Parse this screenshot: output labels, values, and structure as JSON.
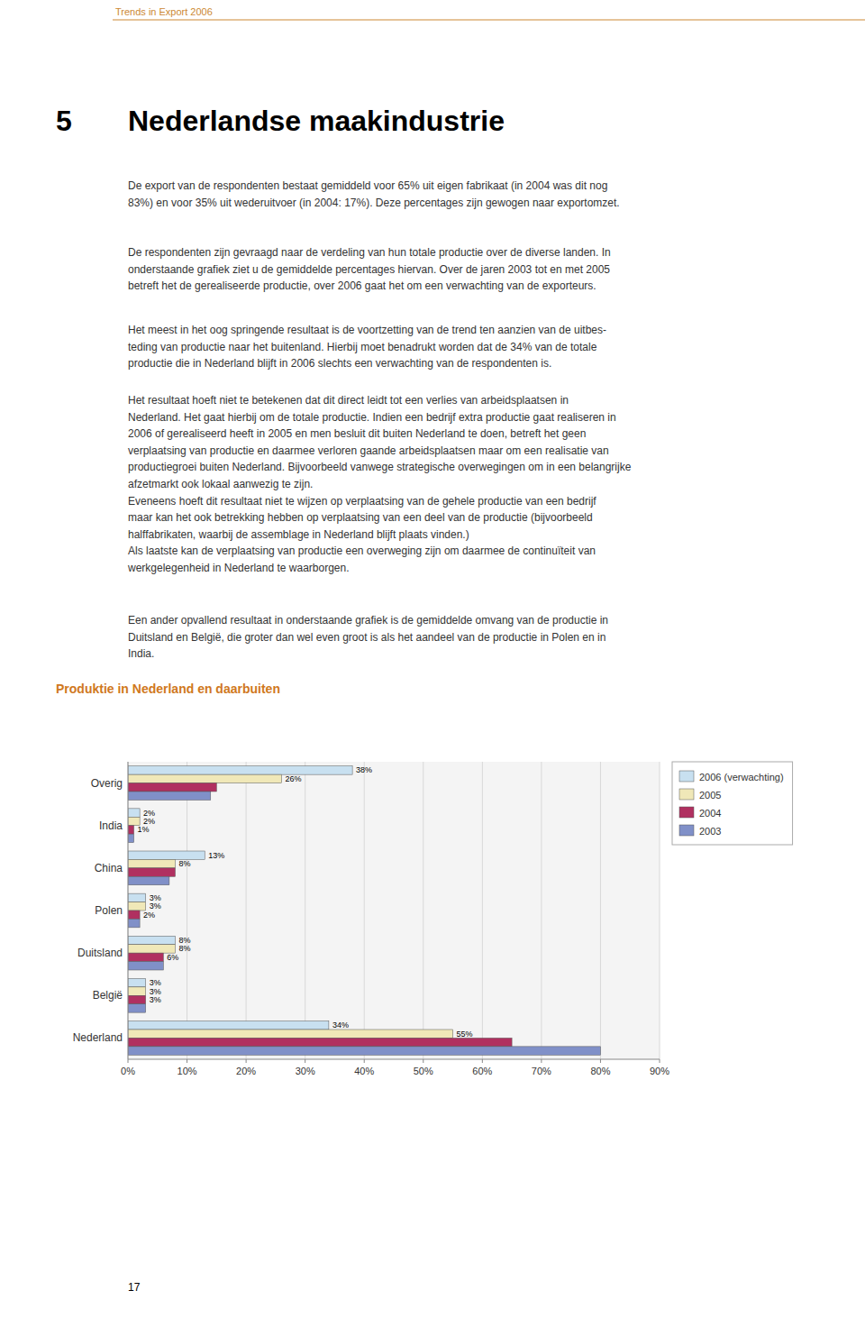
{
  "page": {
    "page_header": "Trends in Export 2006",
    "section_number": "5",
    "section_title": "Nederlandse maakindustrie",
    "body_text": [
      "De export van de respondenten bestaat gemiddeld voor 65% uit eigen fabrikaat (in 2004 was dit nog\n83%) en voor 35% uit wederuitvoer (in 2004: 17%). Deze percentages zijn gewogen naar exportomzet.",
      "De respondenten zijn gevraagd naar de verdeling van hun totale productie over de diverse landen. In\nonderstaande grafiek ziet u de gemiddelde percentages hiervan. Over de jaren 2003 tot en met 2005\nbetreft het de gerealiseerde productie, over 2006 gaat het om een verwachting van de exporteurs.",
      "Het meest in het oog springende resultaat is de voortzetting van de trend ten aanzien van de uitbes-\nteding van productie naar het buitenland. Hierbij moet benadrukt worden dat de 34% van de totale\nproductie die in Nederland blijft in 2006 slechts een verwachting van de respondenten is.",
      "Het resultaat hoeft niet te betekenen dat dit direct leidt tot een verlies van arbeidsplaatsen in\nNederland. Het gaat hierbij om de totale productie. Indien een bedrijf extra productie gaat realiseren in\n2006 of gerealiseerd heeft in 2005 en men besluit dit buiten Nederland te doen, betreft het geen\nverplaatsing van productie en daarmee verloren gaande arbeidsplaatsen maar om een realisatie van\nproductiegroei buiten Nederland. Bijvoorbeeld vanwege strategische overwegingen om in een belangrijke\nafzetmarkt ook lokaal aanwezig te zijn.\nEveneens hoeft dit resultaat niet te wijzen op verplaatsing van de gehele productie van een bedrijf\nmaar kan het ook betrekking hebben op verplaatsing van een deel van de productie (bijvoorbeeld\nhalffabrikaten, waarbij de assemblage in Nederland blijft plaats vinden.)\nAls laatste kan de verplaatsing van productie een overweging zijn om daarmee de continuïteit van\nwerkgelegenheid in Nederland te waarborgen.",
      "Een ander opvallend resultaat in onderstaande grafiek is de gemiddelde omvang van de productie in\nDuitsland en België, die groter dan wel even groot is als het aandeel van de productie in Polen en in\nIndia."
    ],
    "page_number": "17"
  },
  "chart_data": {
    "type": "bar",
    "orientation": "horizontal",
    "title": "Produktie in Nederland en daarbuiten",
    "categories": [
      "Overig",
      "India",
      "China",
      "Polen",
      "Duitsland",
      "België",
      "Nederland"
    ],
    "series": [
      {
        "name": "2006 (verwachting)",
        "color": "#c8e0f0",
        "values": [
          38,
          2,
          13,
          3,
          8,
          3,
          34
        ],
        "value_labels": [
          "38%",
          "2%",
          "13%",
          "3%",
          "8%",
          "3%",
          "34%"
        ]
      },
      {
        "name": "2005",
        "color": "#f0e8b8",
        "values": [
          26,
          2,
          8,
          3,
          8,
          3,
          55
        ],
        "value_labels": [
          "26%",
          "2%",
          "8%",
          "3%",
          "8%",
          "3%",
          "55%"
        ]
      },
      {
        "name": "2004",
        "color": "#b03060",
        "values": [
          15,
          1,
          8,
          2,
          6,
          3,
          65
        ],
        "value_labels": [
          null,
          "1%",
          null,
          "2%",
          "6%",
          "3%",
          null
        ]
      },
      {
        "name": "2003",
        "color": "#8090c8",
        "values": [
          14,
          1,
          7,
          2,
          6,
          3,
          80
        ]
      }
    ],
    "xlim": [
      0,
      90
    ],
    "xticks": [
      {
        "value": 0,
        "label": "0%"
      },
      {
        "value": 10,
        "label": "10%"
      },
      {
        "value": 20,
        "label": "20%"
      },
      {
        "value": 30,
        "label": "30%"
      },
      {
        "value": 40,
        "label": "40%"
      },
      {
        "value": 50,
        "label": "50%"
      },
      {
        "value": 60,
        "label": "60%"
      },
      {
        "value": 70,
        "label": "70%"
      },
      {
        "value": 80,
        "label": "80%"
      },
      {
        "value": 90,
        "label": "90%"
      }
    ],
    "grid": true,
    "legend": "right"
  }
}
